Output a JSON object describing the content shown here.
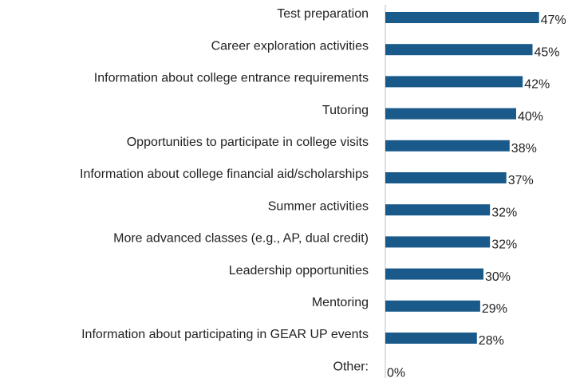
{
  "chart_data": {
    "type": "bar",
    "orientation": "horizontal",
    "categories": [
      "Test preparation",
      "Career exploration activities",
      "Information about college entrance requirements",
      "Tutoring",
      "Opportunities to participate in college visits",
      "Information about college financial aid/scholarships",
      "Summer activities",
      "More advanced classes (e.g., AP, dual credit)",
      "Leadership opportunities",
      "Mentoring",
      "Information about participating in GEAR UP events",
      "Other:"
    ],
    "values": [
      47,
      45,
      42,
      40,
      38,
      37,
      32,
      32,
      30,
      29,
      28,
      0
    ],
    "value_labels": [
      "47%",
      "45%",
      "42%",
      "40%",
      "38%",
      "37%",
      "32%",
      "32%",
      "30%",
      "29%",
      "28%",
      "0%"
    ],
    "color": "#1a5a8a"
  }
}
